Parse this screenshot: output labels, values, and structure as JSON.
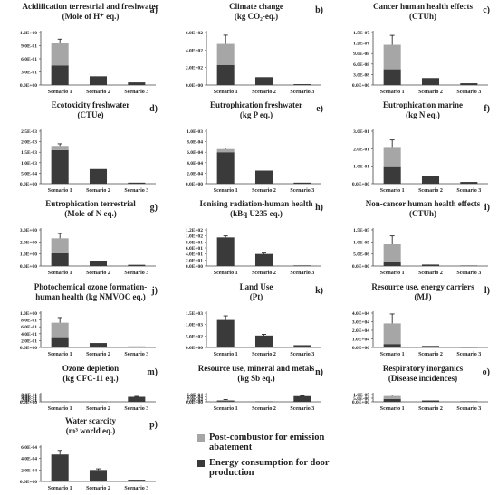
{
  "legend": {
    "post_label": "Post-combustor for emission abatement",
    "energy_label": "Energy consumption for door production"
  },
  "colors": {
    "energy": "#3a3a3a",
    "post": "#a6a6a6",
    "axis": "#444444",
    "text": "#222222"
  },
  "chart_data": [
    {
      "type": "bar",
      "stacked": true,
      "panel": "a)",
      "title": [
        "Acidification terrestrial and freshwater",
        "(Mole of H⁺ eq.)"
      ],
      "categories": [
        "Scenario 1",
        "Scenario 2",
        "Scenario 3"
      ],
      "ylim": [
        0,
        1.2
      ],
      "yticks": [
        0,
        0.3,
        0.6,
        0.9,
        1.2
      ],
      "ytick_labels": [
        "0.0E+00",
        "3.0E-01",
        "6.0E-01",
        "9.0E-01",
        "1.2E+00"
      ],
      "series": [
        {
          "name": "Energy consumption for door production",
          "values": [
            0.45,
            0.2,
            0.06
          ]
        },
        {
          "name": "Post-combustor for emission abatement",
          "values": [
            0.52,
            0,
            0
          ]
        }
      ],
      "error_tops": [
        1.05,
        null,
        null
      ]
    },
    {
      "type": "bar",
      "stacked": true,
      "panel": "b)",
      "title": [
        "Climate change",
        "(kg CO₂-eq.)"
      ],
      "categories": [
        "Scenario 1",
        "Scenario 2",
        "Scenario 3"
      ],
      "ylim": [
        0,
        600
      ],
      "yticks": [
        0,
        200,
        400,
        600
      ],
      "ytick_labels": [
        "0.0E+00",
        "2.0E+02",
        "4.0E+02",
        "6.0E+02"
      ],
      "series": [
        {
          "name": "Energy consumption for door production",
          "values": [
            230,
            90,
            10
          ]
        },
        {
          "name": "Post-combustor for emission abatement",
          "values": [
            240,
            0,
            0
          ]
        }
      ],
      "error_tops": [
        570,
        null,
        null
      ]
    },
    {
      "type": "bar",
      "stacked": true,
      "panel": "c)",
      "title": [
        "Cancer human health effects",
        "(CTUh)"
      ],
      "categories": [
        "Scenario 1",
        "Scenario 2",
        "Scenario 3"
      ],
      "ylim": [
        0,
        1.5e-07
      ],
      "yticks": [
        0,
        3e-08,
        6e-08,
        9e-08,
        1.2e-07,
        1.5e-07
      ],
      "ytick_labels": [
        "0.0E+00",
        "3.0E-08",
        "6.0E-08",
        "9.0E-08",
        "1.2E-07",
        "1.5E-07"
      ],
      "series": [
        {
          "name": "Energy consumption for door production",
          "values": [
            4.5e-08,
            2e-08,
            5e-09
          ]
        },
        {
          "name": "Post-combustor for emission abatement",
          "values": [
            7e-08,
            0,
            0
          ]
        }
      ],
      "error_tops": [
        1.42e-07,
        null,
        null
      ]
    },
    {
      "type": "bar",
      "stacked": true,
      "panel": "d)",
      "title": [
        "Ecotoxicity freshwater",
        "(CTUe)"
      ],
      "categories": [
        "Scenario 1",
        "Scenario 2",
        "Scenario 3"
      ],
      "ylim": [
        0,
        0.0025
      ],
      "yticks": [
        0,
        0.0005,
        0.001,
        0.0015,
        0.002,
        0.0025
      ],
      "ytick_labels": [
        "0.0E+00",
        "5.0E-04",
        "1.0E-03",
        "1.5E-03",
        "2.0E-03",
        "2.5E-03"
      ],
      "series": [
        {
          "name": "Energy consumption for door production",
          "values": [
            0.0016,
            0.0007,
            5e-05
          ]
        },
        {
          "name": "Post-combustor for emission abatement",
          "values": [
            0.0002,
            0,
            0
          ]
        }
      ],
      "error_tops": [
        0.0019,
        null,
        null
      ]
    },
    {
      "type": "bar",
      "stacked": true,
      "panel": "e)",
      "title": [
        "Eutrophication freshwater",
        "(kg P eq.)"
      ],
      "categories": [
        "Scenario 1",
        "Scenario 2",
        "Scenario 3"
      ],
      "ylim": [
        0,
        0.001
      ],
      "yticks": [
        0,
        0.0002,
        0.0004,
        0.0006,
        0.0008,
        0.001
      ],
      "ytick_labels": [
        "0.0E+00",
        "2.0E-04",
        "4.0E-04",
        "6.0E-04",
        "8.0E-04",
        "1.0E-03"
      ],
      "series": [
        {
          "name": "Energy consumption for door production",
          "values": [
            0.0006,
            0.00025,
            2e-05
          ]
        },
        {
          "name": "Post-combustor for emission abatement",
          "values": [
            6e-05,
            0,
            0
          ]
        }
      ],
      "error_tops": [
        0.00068,
        null,
        null
      ]
    },
    {
      "type": "bar",
      "stacked": true,
      "panel": "f)",
      "title": [
        "Eutrophication marine",
        "(kg N eq.)"
      ],
      "categories": [
        "Scenario 1",
        "Scenario 2",
        "Scenario 3"
      ],
      "ylim": [
        0,
        0.3
      ],
      "yticks": [
        0,
        0.1,
        0.2,
        0.3
      ],
      "ytick_labels": [
        "0.0E+00",
        "1.0E-01",
        "2.0E-01",
        "3.0E-01"
      ],
      "series": [
        {
          "name": "Energy consumption for door production",
          "values": [
            0.1,
            0.045,
            0.01
          ]
        },
        {
          "name": "Post-combustor for emission abatement",
          "values": [
            0.11,
            0,
            0
          ]
        }
      ],
      "error_tops": [
        0.25,
        null,
        null
      ]
    },
    {
      "type": "bar",
      "stacked": true,
      "panel": "g)",
      "title": [
        "Eutrophication terrestrial",
        "(Mole of N eq.)"
      ],
      "categories": [
        "Scenario 1",
        "Scenario 2",
        "Scenario 3"
      ],
      "ylim": [
        0,
        3
      ],
      "yticks": [
        0,
        1,
        2,
        3
      ],
      "ytick_labels": [
        "0.0E+00",
        "1.0E+00",
        "2.0E+00",
        "3.0E+00"
      ],
      "series": [
        {
          "name": "Energy consumption for door production",
          "values": [
            1.05,
            0.45,
            0.1
          ]
        },
        {
          "name": "Post-combustor for emission abatement",
          "values": [
            1.25,
            0,
            0
          ]
        }
      ],
      "error_tops": [
        2.7,
        null,
        null
      ]
    },
    {
      "type": "bar",
      "stacked": true,
      "panel": "h)",
      "title": [
        "Ionising radiation-human health",
        "(kBq U235 eq.)"
      ],
      "categories": [
        "Scenario 1",
        "Scenario 2",
        "Scenario 3"
      ],
      "ylim": [
        0,
        120
      ],
      "yticks": [
        0,
        20,
        40,
        60,
        80,
        100,
        120
      ],
      "ytick_labels": [
        "0.0E+00",
        "2.0E+01",
        "4.0E+01",
        "6.0E+01",
        "8.0E+01",
        "1.0E+02",
        "1.2E+02"
      ],
      "series": [
        {
          "name": "Energy consumption for door production",
          "values": [
            95,
            40,
            2
          ]
        },
        {
          "name": "Post-combustor for emission abatement",
          "values": [
            0,
            0,
            0
          ]
        }
      ],
      "error_tops": [
        100,
        43,
        null
      ]
    },
    {
      "type": "bar",
      "stacked": true,
      "panel": "i)",
      "title": [
        "Non-cancer human health effects",
        "(CTUh)"
      ],
      "categories": [
        "Scenario 1",
        "Scenario 2",
        "Scenario 3"
      ],
      "ylim": [
        0,
        1.5e-05
      ],
      "yticks": [
        0,
        5e-06,
        1e-05,
        1.5e-05
      ],
      "ytick_labels": [
        "0.0E+00",
        "5.0E-06",
        "1.0E-05",
        "1.5E-05"
      ],
      "series": [
        {
          "name": "Energy consumption for door production",
          "values": [
            1.5e-06,
            6e-07,
            2e-07
          ]
        },
        {
          "name": "Post-combustor for emission abatement",
          "values": [
            7.5e-06,
            0,
            0
          ]
        }
      ],
      "error_tops": [
        1.25e-05,
        null,
        null
      ]
    },
    {
      "type": "bar",
      "stacked": true,
      "panel": "j)",
      "title": [
        "Photochemical ozone formation-",
        "human health (kg NMVOC eq.)"
      ],
      "categories": [
        "Scenario 1",
        "Scenario 2",
        "Scenario 3"
      ],
      "ylim": [
        0,
        1
      ],
      "yticks": [
        0,
        0.2,
        0.4,
        0.6,
        0.8,
        1
      ],
      "ytick_labels": [
        "0.0E+00",
        "2.0E-01",
        "4.0E-01",
        "6.0E-01",
        "8.0E-01",
        "1.0E+00"
      ],
      "series": [
        {
          "name": "Energy consumption for door production",
          "values": [
            0.3,
            0.13,
            0.03
          ]
        },
        {
          "name": "Post-combustor for emission abatement",
          "values": [
            0.42,
            0,
            0
          ]
        }
      ],
      "error_tops": [
        0.87,
        null,
        null
      ]
    },
    {
      "type": "bar",
      "stacked": true,
      "panel": "k)",
      "title": [
        "Land Use",
        "(Pt)"
      ],
      "categories": [
        "Scenario 1",
        "Scenario 2",
        "Scenario 3"
      ],
      "ylim": [
        0,
        1500
      ],
      "yticks": [
        0,
        500,
        1000,
        1500
      ],
      "ytick_labels": [
        "0.0E+00",
        "5.0E+02",
        "1.0E+03",
        "1.5E+03"
      ],
      "series": [
        {
          "name": "Energy consumption for door production",
          "values": [
            1200,
            520,
            100
          ]
        },
        {
          "name": "Post-combustor for emission abatement",
          "values": [
            0,
            0,
            0
          ]
        }
      ],
      "error_tops": [
        1380,
        570,
        null
      ]
    },
    {
      "type": "bar",
      "stacked": true,
      "panel": "l)",
      "title": [
        "Resource use, energy carriers",
        "(MJ)"
      ],
      "categories": [
        "Scenario 1",
        "Scenario 2",
        "Scenario 3"
      ],
      "ylim": [
        0,
        40000
      ],
      "yticks": [
        0,
        10000,
        20000,
        30000,
        40000
      ],
      "ytick_labels": [
        "0.0E+00",
        "1.0E+04",
        "2.0E+04",
        "3.0E+04",
        "4.0E+04"
      ],
      "series": [
        {
          "name": "Energy consumption for door production",
          "values": [
            4000,
            1800,
            200
          ]
        },
        {
          "name": "Post-combustor for emission abatement",
          "values": [
            24000,
            0,
            0
          ]
        }
      ],
      "error_tops": [
        39000,
        null,
        null
      ]
    },
    {
      "type": "bar",
      "stacked": true,
      "panel": "m)",
      "title": [
        "Ozone depletion",
        "(kg CFC-11 eq.)"
      ],
      "categories": [
        "Scenario 1",
        "Scenario 2",
        "Scenario 3"
      ],
      "ylim": [
        0,
        8e-11
      ],
      "yticks": [
        0,
        2e-11,
        4e-11,
        6e-11,
        8e-11
      ],
      "ytick_labels": [
        "0.0E+00",
        "2.0E-11",
        "4.0E-11",
        "6.0E-11",
        "8.0E-11"
      ],
      "series": [
        {
          "name": "Energy consumption for door production",
          "values": [
            4e-12,
            2e-12,
            5.5e-11
          ]
        },
        {
          "name": "Post-combustor for emission abatement",
          "values": [
            0,
            0,
            0
          ]
        }
      ],
      "error_tops": [
        null,
        null,
        6e-11
      ]
    },
    {
      "type": "bar",
      "stacked": true,
      "panel": "n)",
      "title": [
        "Resource use, mineral and metals",
        "(kg Sb eq.)"
      ],
      "categories": [
        "Scenario 1",
        "Scenario 2",
        "Scenario 3"
      ],
      "ylim": [
        0,
        0.0006
      ],
      "yticks": [
        0,
        0.0002,
        0.0004,
        0.0006
      ],
      "ytick_labels": [
        "0.0E+00",
        "2.0E-04",
        "4.0E-04",
        "6.0E-04"
      ],
      "series": [
        {
          "name": "Energy consumption for door production",
          "values": [
            7e-05,
            3e-05,
            0.00047
          ]
        },
        {
          "name": "Post-combustor for emission abatement",
          "values": [
            8e-05,
            0,
            0
          ]
        }
      ],
      "error_tops": [
        0.00019,
        null,
        0.0005
      ]
    },
    {
      "type": "bar",
      "stacked": true,
      "panel": "o)",
      "title": [
        "Respiratory inorganics",
        "(Disease incidences)"
      ],
      "categories": [
        "Scenario 1",
        "Scenario 2",
        "Scenario 3"
      ],
      "ylim": [
        0,
        1e-05
      ],
      "yticks": [
        0,
        5e-06,
        1e-05
      ],
      "ytick_labels": [
        "0.0E+00",
        "5.0E-06",
        "1.0E-05"
      ],
      "series": [
        {
          "name": "Energy consumption for door production",
          "values": [
            4e-06,
            1.8e-06,
            7e-07
          ]
        },
        {
          "name": "Post-combustor for emission abatement",
          "values": [
            4e-06,
            0,
            0
          ]
        }
      ],
      "error_tops": [
        9.5e-06,
        null,
        null
      ]
    },
    {
      "type": "bar",
      "stacked": true,
      "panel": "p)",
      "title": [
        "Water scarcity",
        "(m³ world eq.)"
      ],
      "categories": [
        "Scenario 1",
        "Scenario 2",
        "Scenario 3"
      ],
      "ylim": [
        0,
        0.0006
      ],
      "yticks": [
        0,
        0.0002,
        0.0004,
        0.0006
      ],
      "ytick_labels": [
        "0.0E+00",
        "2.0E-04",
        "4.0E-04",
        "6.0E-04"
      ],
      "series": [
        {
          "name": "Energy consumption for door production",
          "values": [
            0.00047,
            0.0002,
            3e-05
          ]
        },
        {
          "name": "Post-combustor for emission abatement",
          "values": [
            0,
            0,
            0
          ]
        }
      ],
      "error_tops": [
        0.00054,
        0.00022,
        null
      ]
    }
  ]
}
